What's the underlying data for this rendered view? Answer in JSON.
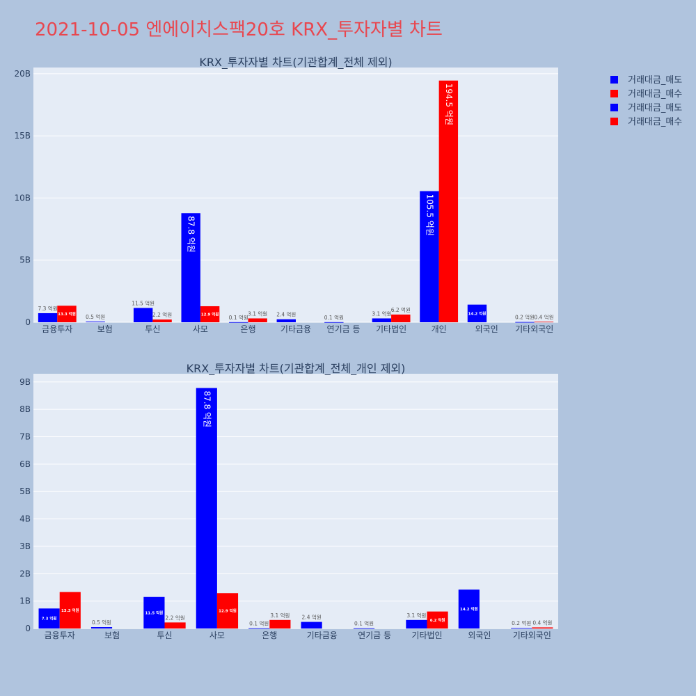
{
  "title": "2021-10-05 엔에이치스팩20호 KRX_투자자별 차트",
  "legend": [
    "거래대금_매도",
    "거래대금_매수",
    "거래대금_매도",
    "거래대금_매수"
  ],
  "colors": {
    "sell": "#0000ff",
    "buy": "#ff0000"
  },
  "chart_data": [
    {
      "type": "bar",
      "title": "KRX_투자자별 차트(기관합계_전체 제외)",
      "categories": [
        "금융투자",
        "보험",
        "투신",
        "사모",
        "은행",
        "기타금융",
        "연기금 등",
        "기타법인",
        "개인",
        "외국인",
        "기타외국인"
      ],
      "ylim": [
        0,
        20.5
      ],
      "yticks": [
        0,
        5,
        10,
        15,
        20
      ],
      "ytick_labels": [
        "0",
        "5B",
        "10B",
        "15B",
        "20B"
      ],
      "grid": true,
      "legend_position": "top-right",
      "series": [
        {
          "name": "거래대금_매도",
          "values": [
            0.73,
            0.05,
            1.15,
            8.78,
            0.01,
            0.24,
            0.01,
            0.31,
            10.55,
            1.42,
            0.02
          ],
          "labels": [
            "7.3 억원",
            "0.5 억원",
            "11.5 억원",
            "87.8 억원",
            "0.1 억원",
            "2.4 억원",
            "0.1 억원",
            "3.1 억원",
            "105.5 억원",
            "14.2 억원",
            "0.2 억원"
          ]
        },
        {
          "name": "거래대금_매수",
          "values": [
            1.33,
            0,
            0.22,
            1.29,
            0.31,
            0,
            0,
            0.62,
            19.45,
            0,
            0.04
          ],
          "labels": [
            "13.3 억원",
            "",
            "2.2 억원",
            "12.9 억원",
            "3.1 억원",
            "",
            "",
            "6.2 억원",
            "194.5 억원",
            "",
            "0.4 억원"
          ]
        }
      ]
    },
    {
      "type": "bar",
      "title": "KRX_투자자별 차트(기관합계_전체_개인 제외)",
      "categories": [
        "금융투자",
        "보험",
        "투신",
        "사모",
        "은행",
        "기타금융",
        "연기금 등",
        "기타법인",
        "외국인",
        "기타외국인"
      ],
      "ylim": [
        0,
        9.3
      ],
      "yticks": [
        0,
        1,
        2,
        3,
        4,
        5,
        6,
        7,
        8,
        9
      ],
      "ytick_labels": [
        "0",
        "1B",
        "2B",
        "3B",
        "4B",
        "5B",
        "6B",
        "7B",
        "8B",
        "9B"
      ],
      "grid": true,
      "series": [
        {
          "name": "거래대금_매도",
          "values": [
            0.73,
            0.05,
            1.15,
            8.78,
            0.01,
            0.24,
            0.01,
            0.31,
            1.42,
            0.02
          ],
          "labels": [
            "7.3 억원",
            "0.5 억원",
            "11.5 억원",
            "87.8 억원",
            "0.1 억원",
            "2.4 억원",
            "0.1 억원",
            "3.1 억원",
            "14.2 억원",
            "0.2 억원"
          ]
        },
        {
          "name": "거래대금_매수",
          "values": [
            1.33,
            0,
            0.22,
            1.29,
            0.31,
            0,
            0,
            0.62,
            0,
            0.04
          ],
          "labels": [
            "13.3 억원",
            "",
            "2.2 억원",
            "12.9 억원",
            "3.1 억원",
            "",
            "",
            "6.2 억원",
            "",
            "0.4 억원"
          ]
        }
      ]
    }
  ]
}
